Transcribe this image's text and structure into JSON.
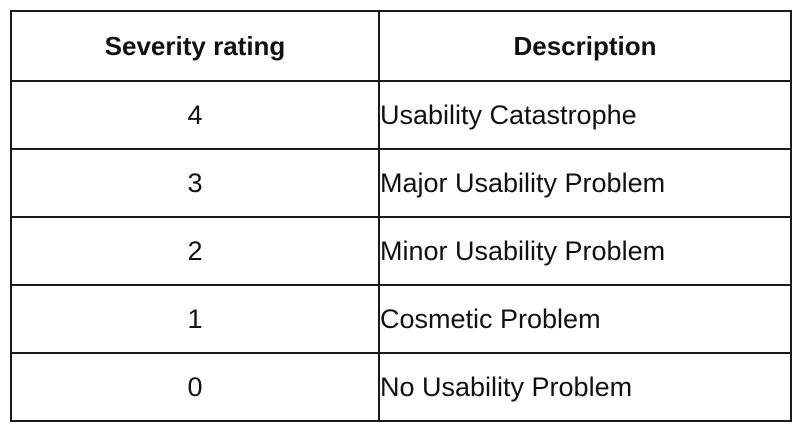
{
  "table": {
    "headers": {
      "rating": "Severity rating",
      "description": "Description"
    },
    "rows": [
      {
        "rating": "4",
        "description": "Usability Catastrophe"
      },
      {
        "rating": "3",
        "description": "Major Usability Problem"
      },
      {
        "rating": "2",
        "description": "Minor Usability Problem"
      },
      {
        "rating": "1",
        "description": "Cosmetic Problem"
      },
      {
        "rating": "0",
        "description": "No Usability Problem"
      }
    ],
    "colors": {
      "border": "#1a1a1a",
      "text": "#111111",
      "background": "#ffffff"
    }
  }
}
